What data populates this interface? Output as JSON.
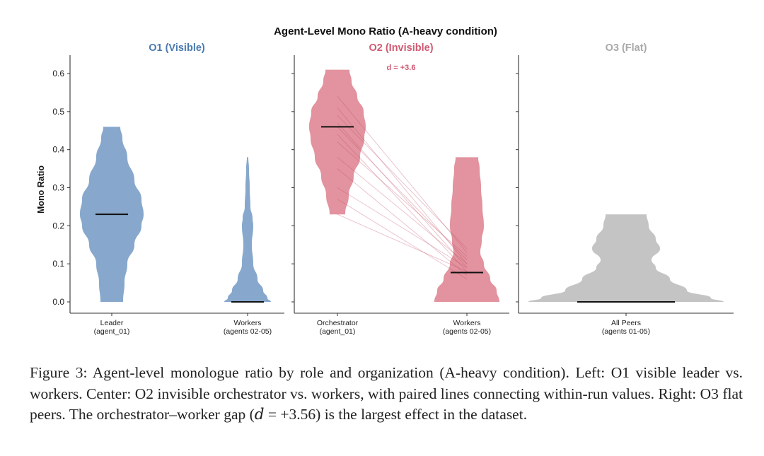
{
  "figure": {
    "title": "Agent-Level Mono Ratio (A-heavy condition)",
    "ylabel": "Mono Ratio"
  },
  "chart_data": {
    "type": "violin",
    "title": "Agent-Level Mono Ratio (A-heavy condition)",
    "ylabel": "Mono Ratio",
    "ylim": [
      -0.03,
      0.65
    ],
    "yticks": [
      "0.0",
      "0.1",
      "0.2",
      "0.3",
      "0.4",
      "0.5",
      "0.6"
    ],
    "grid": false,
    "panels": [
      {
        "title": "O1 (Visible)",
        "color": "#4a7aae",
        "fill": "#87a8cc",
        "categories": [
          {
            "label": "Leader",
            "sublabel": "(agent_01)",
            "range": [
              0.0,
              0.46
            ],
            "median": 0.23
          },
          {
            "label": "Workers",
            "sublabel": "(agents 02-05)",
            "range": [
              0.0,
              0.38
            ],
            "median": 0.0
          }
        ]
      },
      {
        "title": "O2 (Invisible)",
        "color": "#cf5a73",
        "fill": "#e2939f",
        "annotation": "d = +3.6",
        "categories": [
          {
            "label": "Orchestrator",
            "sublabel": "(agent_01)",
            "range": [
              0.23,
              0.61
            ],
            "median": 0.46
          },
          {
            "label": "Workers",
            "sublabel": "(agents 02-05)",
            "range": [
              0.0,
              0.38
            ],
            "median": 0.077
          }
        ],
        "paired_lines": [
          [
            0.54,
            0.13
          ],
          [
            0.51,
            0.1
          ],
          [
            0.49,
            0.14
          ],
          [
            0.47,
            0.09
          ],
          [
            0.46,
            0.11
          ],
          [
            0.44,
            0.08
          ],
          [
            0.42,
            0.12
          ],
          [
            0.38,
            0.1
          ],
          [
            0.35,
            0.07
          ],
          [
            0.3,
            0.09
          ],
          [
            0.27,
            0.06
          ],
          [
            0.23,
            0.08
          ]
        ]
      },
      {
        "title": "O3 (Flat)",
        "color": "#a9a9a9",
        "fill": "#c4c4c4",
        "categories": [
          {
            "label": "All Peers",
            "sublabel": "(agents 01-05)",
            "range": [
              0.0,
              0.23
            ],
            "median": 0.0
          }
        ]
      }
    ]
  },
  "caption": {
    "text": "Figure 3: Agent-level monologue ratio by role and organization (A-heavy condition). Left: O1 visible leader vs. workers. Center: O2 invisible orchestrator vs. workers, with paired lines connecting within-run values. Right: O3 flat peers. The orchestrator–worker gap (𝑑 = +3.56) is the largest effect in the dataset."
  }
}
